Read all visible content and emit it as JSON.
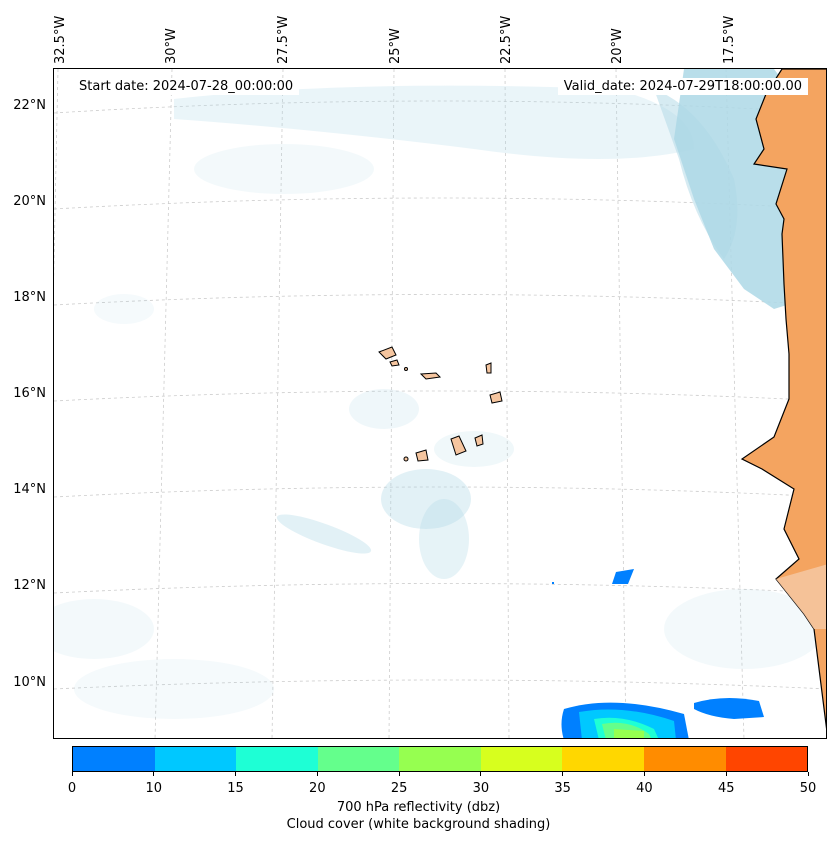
{
  "map": {
    "start_date": "Start date: 2024-07-28_00:00:00",
    "valid_date": "Valid_date: 2024-07-29T18:00:00.00",
    "lon_labels": [
      "32.5°W",
      "30°W",
      "27.5°W",
      "25°W",
      "22.5°W",
      "20°W",
      "17.5°W"
    ],
    "lat_labels": [
      "22°N",
      "20°N",
      "18°N",
      "16°N",
      "14°N",
      "12°N",
      "10°N"
    ],
    "colors": {
      "land_mainland": "#f4a460",
      "land_island": "#f5c59f",
      "cloud": "#add8e6",
      "coast": "#000000",
      "grid": "#cccccc"
    }
  },
  "colorbar": {
    "ticks": [
      "0",
      "10",
      "15",
      "20",
      "25",
      "30",
      "35",
      "40",
      "45",
      "50"
    ],
    "colors": [
      "#0080ff",
      "#00c8ff",
      "#1effd5",
      "#64ff8c",
      "#96ff50",
      "#d7ff1e",
      "#ffd700",
      "#ff8c00",
      "#ff4500"
    ],
    "label_line1": "700 hPa reflectivity (dbz)",
    "label_line2": "Cloud cover (white background shading)"
  }
}
